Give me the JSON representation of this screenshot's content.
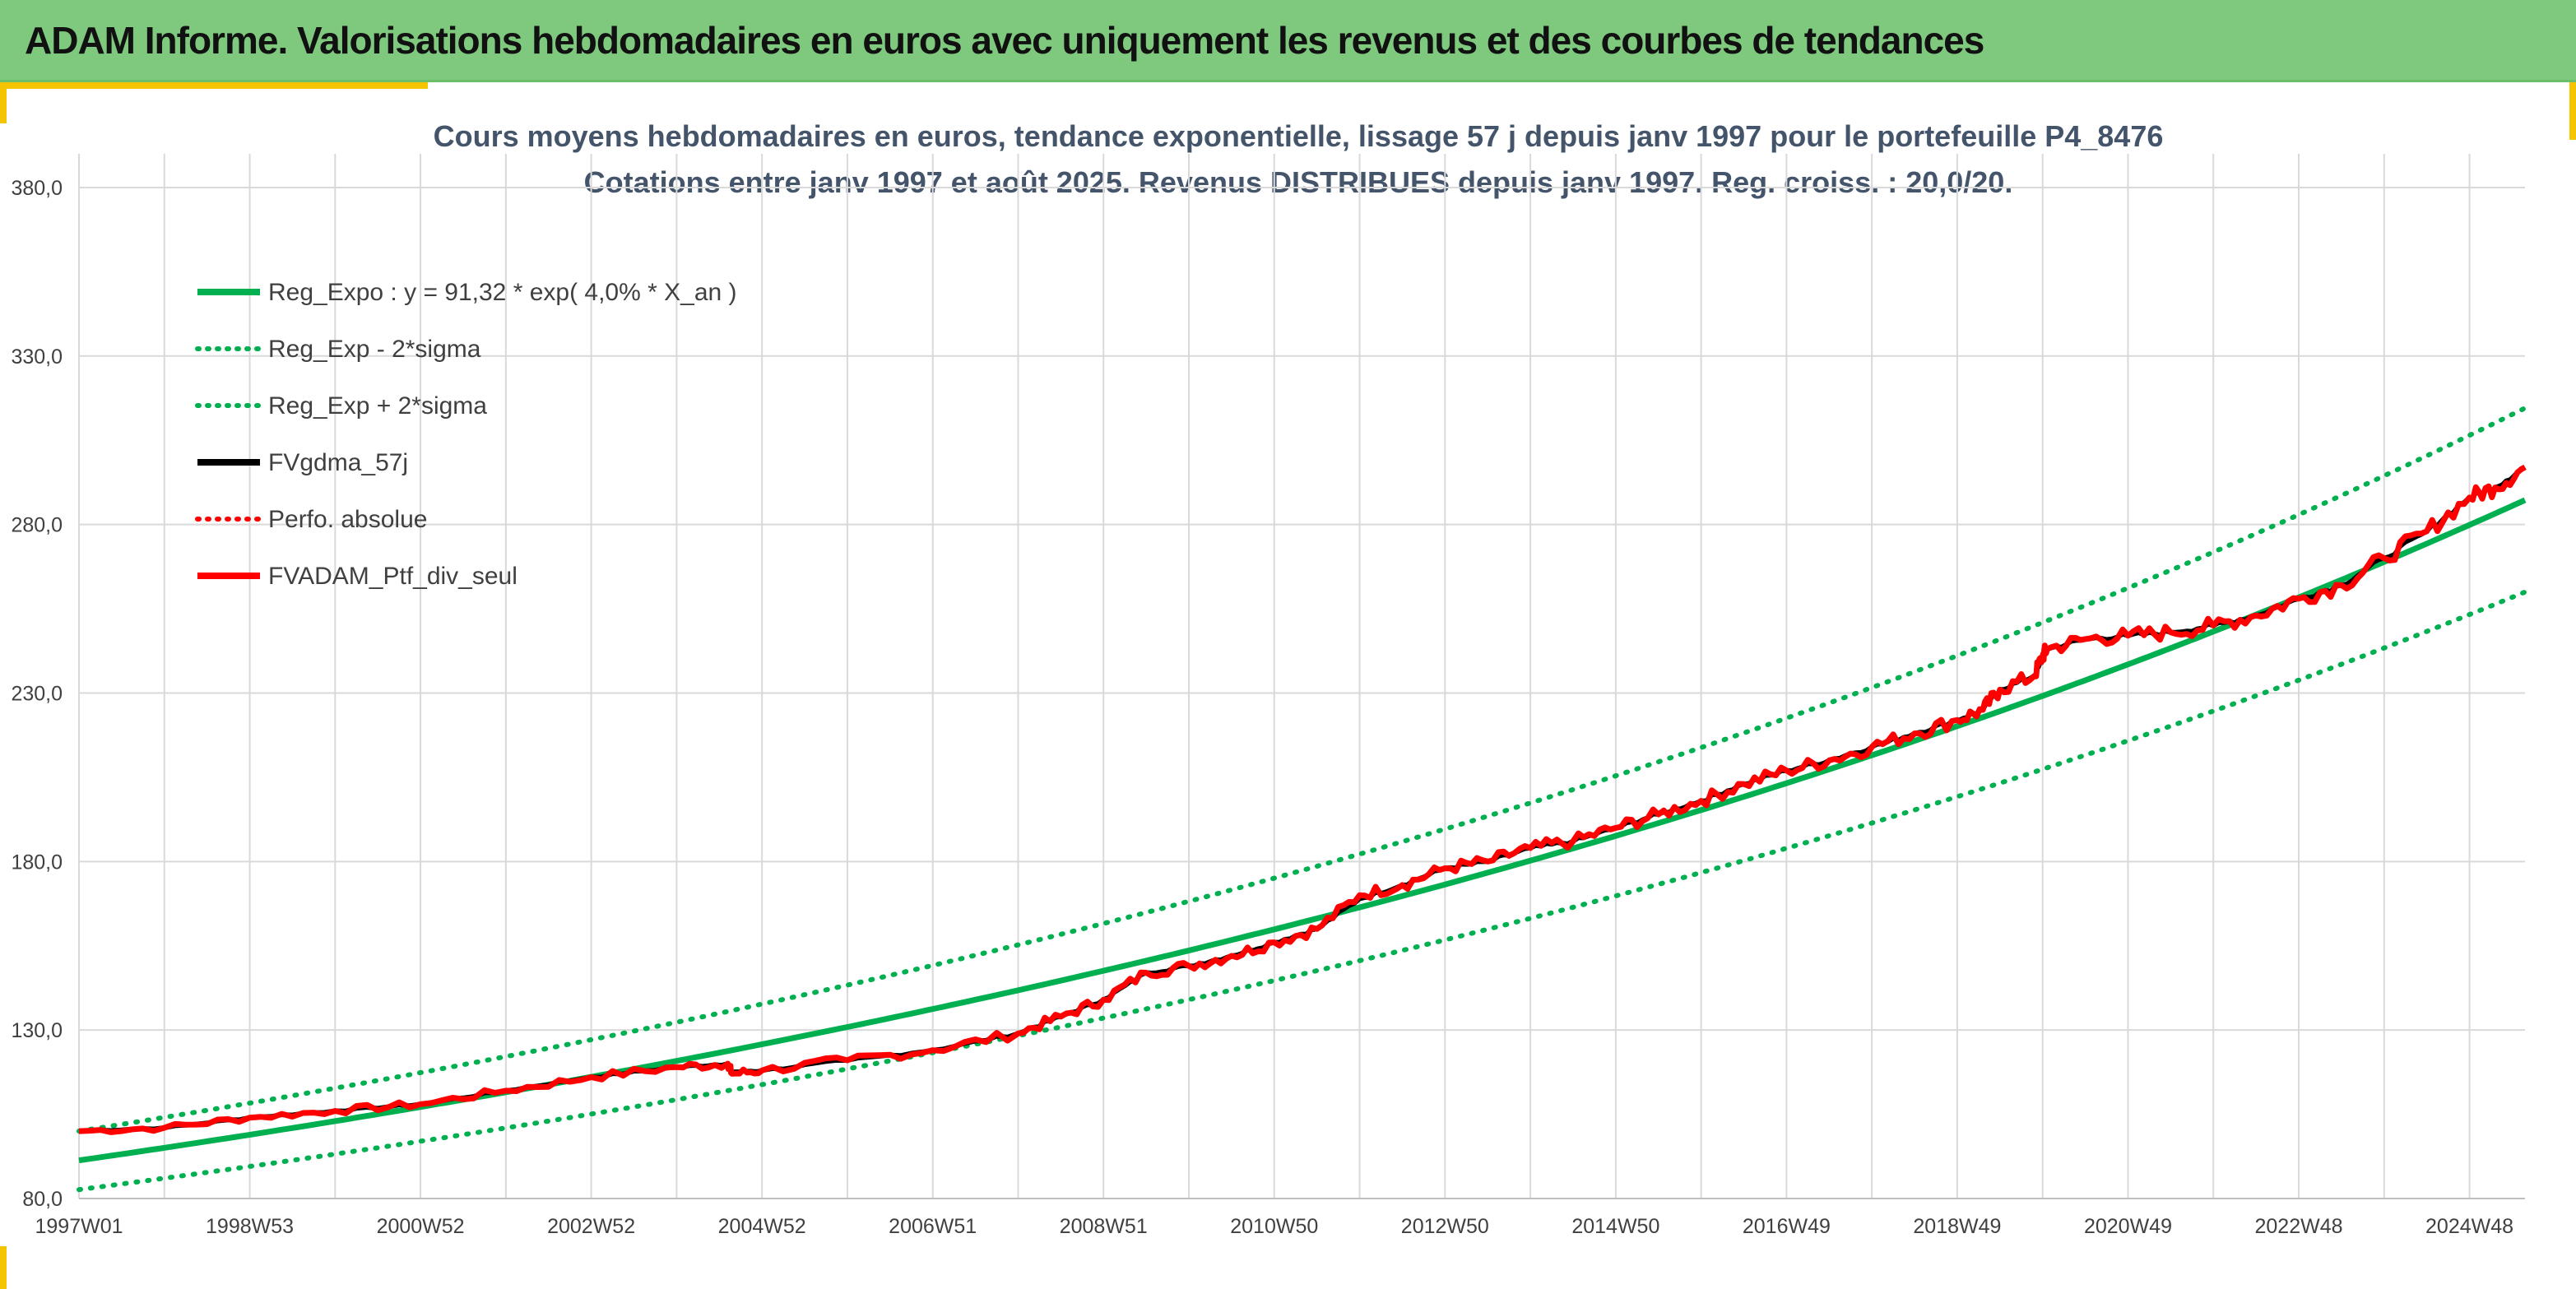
{
  "banner": {
    "title": "ADAM Informe. Valorisations hebdomadaires en euros avec uniquement les revenus et des courbes de tendances"
  },
  "colors": {
    "banner_bg": "#7fc97f",
    "accent": "#f5c400",
    "regression": "#00b050",
    "smoothed": "#000000",
    "perf": "#ff0000",
    "portfolio": "#ff0000",
    "grid": "#d9d9d9",
    "title_text": "#44546a"
  },
  "chart_data": {
    "type": "line",
    "title_lines": [
      "Cours moyens hebdomadaires en euros, tendance exponentielle, lissage 57 j depuis janv 1997 pour le portefeuille P4_8476",
      "Cotations entre janv 1997 et août 2025. Revenus DISTRIBUES depuis janv 1997. Reg. croiss. : 20,0/20."
    ],
    "xlabel": "",
    "ylabel": "",
    "x_range_years": [
      1997.0,
      2025.65
    ],
    "ylim": [
      80,
      390
    ],
    "y_ticks": [
      80,
      130,
      180,
      230,
      280,
      330,
      380
    ],
    "y_tick_labels": [
      "80,0",
      "130,0",
      "180,0",
      "230,0",
      "280,0",
      "330,0",
      "380,0"
    ],
    "x_ticks": [
      {
        "label": "1997W01",
        "year": 1997.0
      },
      {
        "label": "1998W53",
        "year": 1999.0
      },
      {
        "label": "2000W52",
        "year": 2001.0
      },
      {
        "label": "2002W52",
        "year": 2003.0
      },
      {
        "label": "2004W52",
        "year": 2005.0
      },
      {
        "label": "2006W51",
        "year": 2007.0
      },
      {
        "label": "2008W51",
        "year": 2009.0
      },
      {
        "label": "2010W50",
        "year": 2011.0
      },
      {
        "label": "2012W50",
        "year": 2013.0
      },
      {
        "label": "2014W50",
        "year": 2015.0
      },
      {
        "label": "2016W49",
        "year": 2017.0
      },
      {
        "label": "2018W49",
        "year": 2019.0
      },
      {
        "label": "2020W49",
        "year": 2021.0
      },
      {
        "label": "2022W48",
        "year": 2023.0
      },
      {
        "label": "2024W48",
        "year": 2025.0
      }
    ],
    "regression": {
      "a": 91.32,
      "rate": 0.04,
      "sigma_band": 9.5
    },
    "legend": [
      {
        "label": "Reg_Expo : y = 91,32 * exp( 4,0% *  X_an )",
        "color": "#00b050",
        "style": "solid"
      },
      {
        "label": "Reg_Exp - 2*sigma",
        "color": "#00b050",
        "style": "dotted"
      },
      {
        "label": "Reg_Exp + 2*sigma",
        "color": "#00b050",
        "style": "dotted"
      },
      {
        "label": "FVgdma_57j",
        "color": "#000000",
        "style": "solid"
      },
      {
        "label": "Perfo. absolue",
        "color": "#ff0000",
        "style": "dotted"
      },
      {
        "label": "FVADAM_Ptf_div_seul",
        "color": "#ff0000",
        "style": "solid"
      }
    ],
    "legend_position": "top-left",
    "grid": true,
    "series": [
      {
        "name": "FVADAM_Ptf_div_seul",
        "x": [
          1997.0,
          1998.0,
          1999.0,
          2000.0,
          2001.0,
          2002.0,
          2003.0,
          2004.0,
          2004.6,
          2004.65,
          2005.0,
          2006.0,
          2007.0,
          2008.0,
          2008.5,
          2009.0,
          2009.5,
          2010.0,
          2010.5,
          2011.0,
          2011.5,
          2012.0,
          2012.5,
          2013.0,
          2013.5,
          2014.0,
          2014.5,
          2015.0,
          2015.5,
          2016.0,
          2016.5,
          2017.0,
          2017.5,
          2018.0,
          2018.5,
          2019.0,
          2019.3,
          2019.5,
          2019.9,
          2020.0,
          2020.05,
          2020.5,
          2021.0,
          2021.5,
          2022.0,
          2022.5,
          2023.0,
          2023.5,
          2024.0,
          2024.5,
          2025.0,
          2025.3,
          2025.65
        ],
        "y": [
          100,
          101,
          104,
          106,
          108,
          112,
          116,
          119,
          120,
          117,
          118,
          121,
          124,
          129,
          134,
          139,
          147,
          149,
          152,
          156,
          160,
          170,
          173,
          178,
          180,
          184,
          186,
          190,
          194,
          198,
          203,
          207,
          210,
          214,
          218,
          222,
          225,
          231,
          235,
          241,
          243,
          246,
          247,
          248,
          250,
          253,
          258,
          262,
          270,
          278,
          288,
          291,
          297
        ]
      },
      {
        "name": "FVgdma_57j",
        "x": [
          1997.0,
          1998.0,
          1999.0,
          2000.0,
          2001.0,
          2002.0,
          2003.0,
          2004.0,
          2004.6,
          2004.65,
          2005.0,
          2006.0,
          2007.0,
          2008.0,
          2008.5,
          2009.0,
          2009.5,
          2010.0,
          2010.5,
          2011.0,
          2011.5,
          2012.0,
          2012.5,
          2013.0,
          2013.5,
          2014.0,
          2014.5,
          2015.0,
          2015.5,
          2016.0,
          2016.5,
          2017.0,
          2017.5,
          2018.0,
          2018.5,
          2019.0,
          2019.3,
          2019.5,
          2019.9,
          2020.0,
          2020.05,
          2020.5,
          2021.0,
          2021.5,
          2022.0,
          2022.5,
          2023.0,
          2023.5,
          2024.0,
          2024.5,
          2025.0,
          2025.3,
          2025.65
        ],
        "y": [
          100,
          101,
          104,
          106,
          108,
          112,
          116,
          119,
          120,
          117.5,
          118,
          121,
          124,
          129,
          134,
          139,
          147,
          149,
          152,
          156,
          160,
          169,
          173,
          178,
          180,
          184,
          186,
          190,
          194,
          198,
          203,
          207,
          210,
          214,
          218,
          222,
          225,
          231,
          235,
          240,
          243,
          246,
          247,
          248,
          250,
          253,
          258,
          262,
          270,
          278,
          288,
          291,
          297
        ]
      }
    ]
  }
}
